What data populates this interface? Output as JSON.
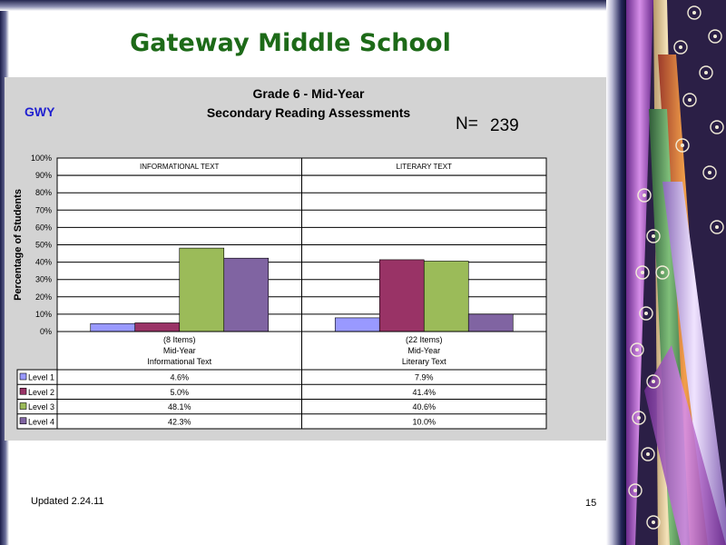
{
  "slide": {
    "school_title": "Gateway Middle School",
    "school_code": "GWY",
    "n_label": "N=",
    "n_value": "239",
    "footer_updated": "Updated  2.24.11",
    "page_number": "15"
  },
  "colors": {
    "title_green": "#1d6a18",
    "code_blue": "#2020d0",
    "level1": "#9999ff",
    "level2": "#993366",
    "level3": "#9bbb59",
    "level4": "#8064a2",
    "plot_bg": "#ffffff",
    "chart_bg": "#d3d3d3"
  },
  "chart_data": {
    "type": "bar",
    "title": "Grade 6 - Mid-Year",
    "subtitle": "Secondary Reading Assessments",
    "ylabel": "Percentage of Students",
    "ylim": [
      0,
      100
    ],
    "ytick_labels": [
      "0%",
      "10%",
      "20%",
      "30%",
      "40%",
      "50%",
      "60%",
      "70%",
      "80%",
      "90%",
      "100%"
    ],
    "grid": true,
    "panels": [
      {
        "header": "INFORMATIONAL TEXT",
        "category_lines": [
          "(8 Items)",
          "Mid-Year",
          "Informational Text"
        ]
      },
      {
        "header": "LITERARY TEXT",
        "category_lines": [
          "(22 Items)",
          "Mid-Year",
          "Literary Text"
        ]
      }
    ],
    "series": [
      {
        "name": "Level 1",
        "values": [
          4.6,
          7.9
        ],
        "labels": [
          "4.6%",
          "7.9%"
        ],
        "color": "#9999ff"
      },
      {
        "name": "Level 2",
        "values": [
          5.0,
          41.4
        ],
        "labels": [
          "5.0%",
          "41.4%"
        ],
        "color": "#993366"
      },
      {
        "name": "Level 3",
        "values": [
          48.1,
          40.6
        ],
        "labels": [
          "48.1%",
          "40.6%"
        ],
        "color": "#9bbb59"
      },
      {
        "name": "Level 4",
        "values": [
          42.3,
          10.0
        ],
        "labels": [
          "42.3%",
          "10.0%"
        ],
        "color": "#8064a2"
      }
    ]
  }
}
